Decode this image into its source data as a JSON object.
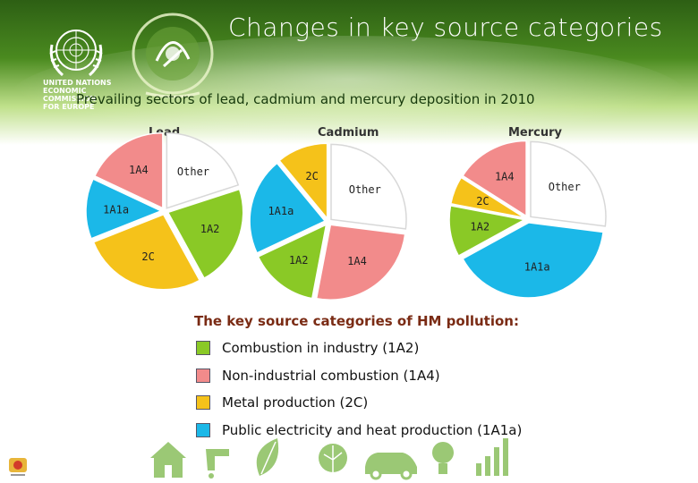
{
  "slide": {
    "title": "Changes in key source categories",
    "subtitle": "Prevailing sectors of lead, cadmium and mercury deposition in 2010",
    "un_logo_text": [
      "UNITED NATIONS",
      "ECONOMIC COMMISSION",
      "FOR EUROPE"
    ]
  },
  "colors": {
    "1A2": "#8ac926",
    "1A4": "#f28b8b",
    "2C": "#f5c21a",
    "1A1a": "#1bb8e8",
    "Other": "#ffffff"
  },
  "chart_data": [
    {
      "type": "pie",
      "title": "Lead",
      "slices": [
        {
          "label": "Other",
          "value": 20
        },
        {
          "label": "1A2",
          "value": 22
        },
        {
          "label": "2C",
          "value": 27
        },
        {
          "label": "1A1a",
          "value": 13
        },
        {
          "label": "1A4",
          "value": 18
        }
      ]
    },
    {
      "type": "pie",
      "title": "Cadmium",
      "slices": [
        {
          "label": "Other",
          "value": 27
        },
        {
          "label": "1A4",
          "value": 26
        },
        {
          "label": "1A2",
          "value": 15
        },
        {
          "label": "1A1a",
          "value": 21
        },
        {
          "label": "2C",
          "value": 11
        }
      ]
    },
    {
      "type": "pie",
      "title": "Mercury",
      "slices": [
        {
          "label": "Other",
          "value": 27
        },
        {
          "label": "1A1a",
          "value": 40
        },
        {
          "label": "1A2",
          "value": 11
        },
        {
          "label": "2C",
          "value": 6
        },
        {
          "label": "1A4",
          "value": 16
        }
      ]
    }
  ],
  "legend": {
    "title": "The key source categories of HM pollution:",
    "items": [
      {
        "code": "1A2",
        "label": "Combustion in industry (1A2)"
      },
      {
        "code": "1A4",
        "label": "Non-industrial combustion (1A4)"
      },
      {
        "code": "2C",
        "label": "Metal production (2C)"
      },
      {
        "code": "1A1a",
        "label": "Public electricity and heat production (1A1a)"
      }
    ]
  },
  "footer_icons": [
    "house-icon",
    "lightbulb-icon",
    "leaf-icon",
    "leaf-icon",
    "drop-icon",
    "car-icon",
    "bulb-icon",
    "water-tap-icon",
    "bar-chart-icon"
  ]
}
